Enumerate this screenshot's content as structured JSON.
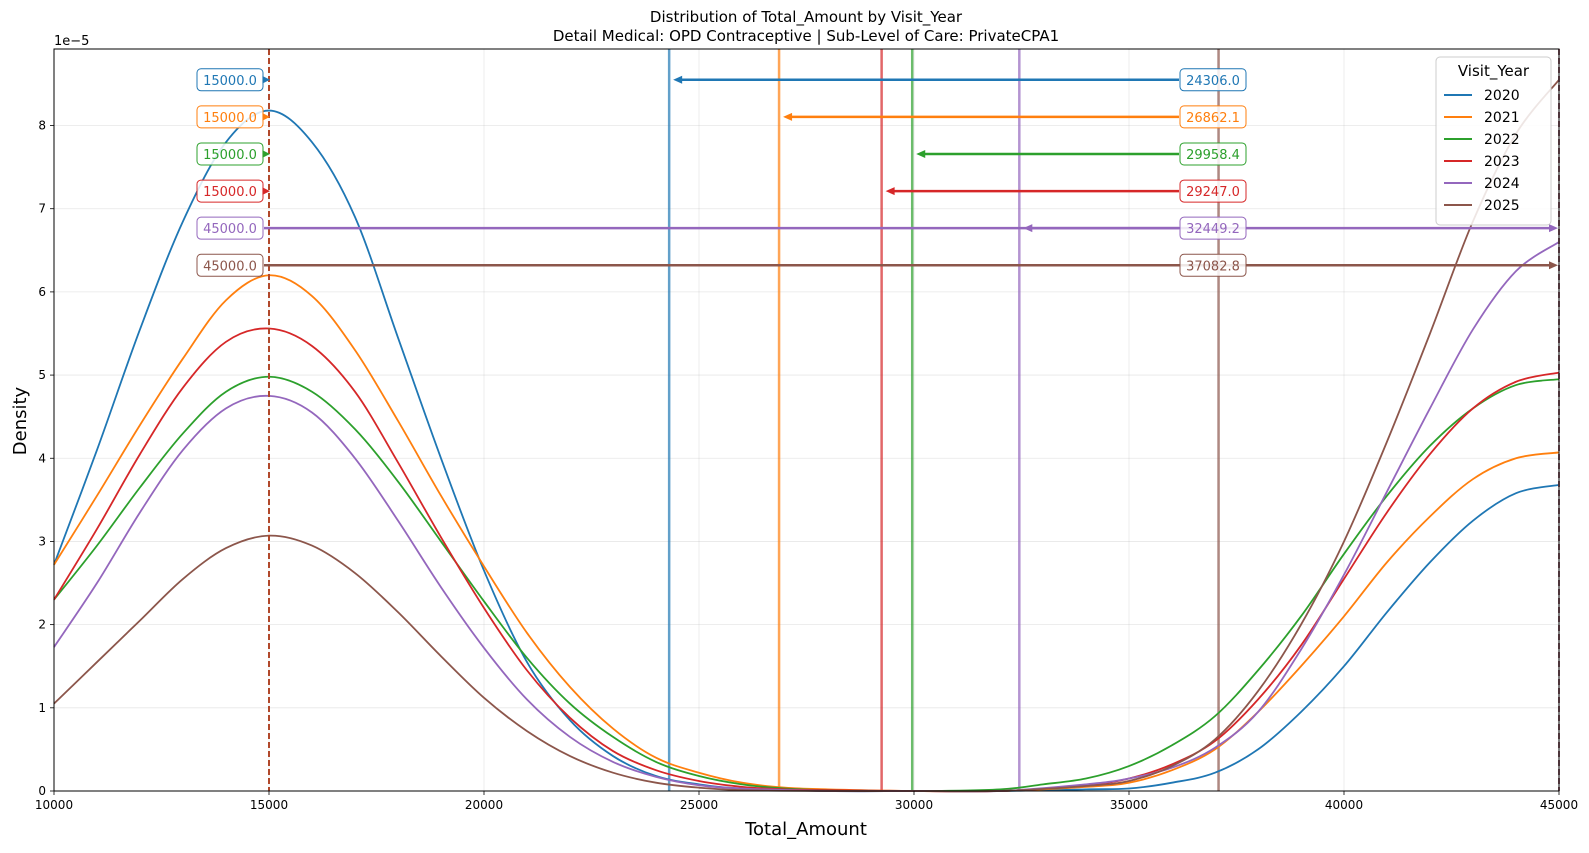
{
  "chart_data": {
    "type": "line",
    "title": "Distribution of Total_Amount by Visit_Year",
    "subtitle": "Detail Medical: OPD Contraceptive | Sub-Level of Care: PrivateCPA1",
    "xlabel": "Total_Amount",
    "ylabel": "Density",
    "y_scale_label": "1e−5",
    "xlim": [
      10000,
      45000
    ],
    "ylim": [
      0,
      8.92
    ],
    "x_ticks": [
      10000,
      15000,
      20000,
      25000,
      30000,
      35000,
      40000,
      45000
    ],
    "y_ticks": [
      0,
      1,
      2,
      3,
      4,
      5,
      6,
      7,
      8
    ],
    "grid": true,
    "legend": {
      "title": "Visit_Year",
      "placement": "top-right"
    },
    "series": [
      {
        "name": "2020",
        "color": "#1f77b4",
        "mode": 15000.0,
        "mean": 24306.0,
        "mode_label": "15000.0",
        "mean_label": "24306.0",
        "points": [
          [
            10000,
            2.72
          ],
          [
            11000,
            4.1
          ],
          [
            12000,
            5.55
          ],
          [
            13000,
            6.85
          ],
          [
            14000,
            7.8
          ],
          [
            15000,
            8.18
          ],
          [
            16000,
            7.8
          ],
          [
            17000,
            6.9
          ],
          [
            18000,
            5.45
          ],
          [
            19000,
            4.0
          ],
          [
            20000,
            2.65
          ],
          [
            21000,
            1.55
          ],
          [
            22000,
            0.85
          ],
          [
            23000,
            0.42
          ],
          [
            24000,
            0.18
          ],
          [
            25000,
            0.08
          ],
          [
            26000,
            0.03
          ],
          [
            28000,
            0.0
          ],
          [
            30000,
            0.0
          ],
          [
            32000,
            0.0
          ],
          [
            34000,
            0.02
          ],
          [
            35000,
            0.03
          ],
          [
            36000,
            0.1
          ],
          [
            37000,
            0.22
          ],
          [
            38000,
            0.5
          ],
          [
            39000,
            0.95
          ],
          [
            40000,
            1.5
          ],
          [
            41000,
            2.15
          ],
          [
            42000,
            2.75
          ],
          [
            43000,
            3.25
          ],
          [
            44000,
            3.58
          ],
          [
            45000,
            3.68
          ]
        ]
      },
      {
        "name": "2021",
        "color": "#ff7f0e",
        "mode": 15000.0,
        "mean": 26862.1,
        "mode_label": "15000.0",
        "mean_label": "26862.1",
        "points": [
          [
            10000,
            2.72
          ],
          [
            11000,
            3.55
          ],
          [
            12000,
            4.4
          ],
          [
            13000,
            5.2
          ],
          [
            14000,
            5.9
          ],
          [
            15000,
            6.2
          ],
          [
            16000,
            5.95
          ],
          [
            17000,
            5.3
          ],
          [
            18000,
            4.45
          ],
          [
            19000,
            3.55
          ],
          [
            20000,
            2.7
          ],
          [
            21000,
            1.9
          ],
          [
            22000,
            1.25
          ],
          [
            23000,
            0.75
          ],
          [
            24000,
            0.4
          ],
          [
            25000,
            0.22
          ],
          [
            26000,
            0.1
          ],
          [
            27000,
            0.04
          ],
          [
            28000,
            0.02
          ],
          [
            30000,
            0.0
          ],
          [
            32000,
            0.0
          ],
          [
            34000,
            0.05
          ],
          [
            35000,
            0.1
          ],
          [
            36000,
            0.25
          ],
          [
            37000,
            0.5
          ],
          [
            38000,
            0.95
          ],
          [
            39000,
            1.5
          ],
          [
            40000,
            2.1
          ],
          [
            41000,
            2.75
          ],
          [
            42000,
            3.3
          ],
          [
            43000,
            3.75
          ],
          [
            44000,
            4.0
          ],
          [
            45000,
            4.07
          ]
        ]
      },
      {
        "name": "2022",
        "color": "#2ca02c",
        "mode": 15000.0,
        "mean": 29958.4,
        "mode_label": "15000.0",
        "mean_label": "29958.4",
        "points": [
          [
            10000,
            2.3
          ],
          [
            11000,
            2.95
          ],
          [
            12000,
            3.65
          ],
          [
            13000,
            4.3
          ],
          [
            14000,
            4.8
          ],
          [
            15000,
            4.98
          ],
          [
            16000,
            4.8
          ],
          [
            17000,
            4.35
          ],
          [
            18000,
            3.72
          ],
          [
            19000,
            3.0
          ],
          [
            20000,
            2.28
          ],
          [
            21000,
            1.6
          ],
          [
            22000,
            1.05
          ],
          [
            23000,
            0.65
          ],
          [
            24000,
            0.35
          ],
          [
            25000,
            0.18
          ],
          [
            26000,
            0.08
          ],
          [
            27000,
            0.03
          ],
          [
            28000,
            0.01
          ],
          [
            30000,
            0.0
          ],
          [
            32000,
            0.02
          ],
          [
            33000,
            0.08
          ],
          [
            34000,
            0.15
          ],
          [
            35000,
            0.3
          ],
          [
            36000,
            0.55
          ],
          [
            37000,
            0.9
          ],
          [
            38000,
            1.45
          ],
          [
            39000,
            2.1
          ],
          [
            40000,
            2.85
          ],
          [
            41000,
            3.55
          ],
          [
            42000,
            4.15
          ],
          [
            43000,
            4.6
          ],
          [
            44000,
            4.88
          ],
          [
            45000,
            4.95
          ]
        ]
      },
      {
        "name": "2023",
        "color": "#d62728",
        "mode": 15000.0,
        "mean": 29247.0,
        "mode_label": "15000.0",
        "mean_label": "29247.0",
        "points": [
          [
            10000,
            2.3
          ],
          [
            11000,
            3.15
          ],
          [
            12000,
            4.05
          ],
          [
            13000,
            4.85
          ],
          [
            14000,
            5.4
          ],
          [
            15000,
            5.56
          ],
          [
            16000,
            5.35
          ],
          [
            17000,
            4.8
          ],
          [
            18000,
            3.95
          ],
          [
            19000,
            3.05
          ],
          [
            20000,
            2.2
          ],
          [
            21000,
            1.45
          ],
          [
            22000,
            0.88
          ],
          [
            23000,
            0.48
          ],
          [
            24000,
            0.25
          ],
          [
            25000,
            0.12
          ],
          [
            26000,
            0.05
          ],
          [
            27000,
            0.02
          ],
          [
            28000,
            0.01
          ],
          [
            30000,
            0.0
          ],
          [
            32000,
            0.0
          ],
          [
            34000,
            0.07
          ],
          [
            35000,
            0.15
          ],
          [
            36000,
            0.32
          ],
          [
            37000,
            0.6
          ],
          [
            38000,
            1.1
          ],
          [
            39000,
            1.75
          ],
          [
            40000,
            2.55
          ],
          [
            41000,
            3.35
          ],
          [
            42000,
            4.05
          ],
          [
            43000,
            4.6
          ],
          [
            44000,
            4.92
          ],
          [
            45000,
            5.03
          ]
        ]
      },
      {
        "name": "2024",
        "color": "#9467bd",
        "mode": 45000.0,
        "mean": 32449.2,
        "mode_label": "45000.0",
        "mean_label": "32449.2",
        "points": [
          [
            10000,
            1.73
          ],
          [
            11000,
            2.5
          ],
          [
            12000,
            3.35
          ],
          [
            13000,
            4.1
          ],
          [
            14000,
            4.6
          ],
          [
            15000,
            4.75
          ],
          [
            16000,
            4.55
          ],
          [
            17000,
            4.0
          ],
          [
            18000,
            3.25
          ],
          [
            19000,
            2.45
          ],
          [
            20000,
            1.72
          ],
          [
            21000,
            1.1
          ],
          [
            22000,
            0.65
          ],
          [
            23000,
            0.35
          ],
          [
            24000,
            0.17
          ],
          [
            25000,
            0.07
          ],
          [
            26000,
            0.03
          ],
          [
            28000,
            0.0
          ],
          [
            30000,
            0.0
          ],
          [
            32000,
            0.0
          ],
          [
            34000,
            0.08
          ],
          [
            35000,
            0.15
          ],
          [
            36000,
            0.28
          ],
          [
            37000,
            0.52
          ],
          [
            38000,
            0.95
          ],
          [
            39000,
            1.7
          ],
          [
            40000,
            2.6
          ],
          [
            41000,
            3.6
          ],
          [
            42000,
            4.6
          ],
          [
            43000,
            5.55
          ],
          [
            44000,
            6.25
          ],
          [
            45000,
            6.6
          ]
        ]
      },
      {
        "name": "2025",
        "color": "#8c564b",
        "mode": 45000.0,
        "mean": 37082.8,
        "mode_label": "45000.0",
        "mean_label": "37082.8",
        "points": [
          [
            10000,
            1.05
          ],
          [
            11000,
            1.55
          ],
          [
            12000,
            2.05
          ],
          [
            13000,
            2.55
          ],
          [
            14000,
            2.92
          ],
          [
            15000,
            3.07
          ],
          [
            16000,
            2.95
          ],
          [
            17000,
            2.62
          ],
          [
            18000,
            2.15
          ],
          [
            19000,
            1.62
          ],
          [
            20000,
            1.12
          ],
          [
            21000,
            0.72
          ],
          [
            22000,
            0.42
          ],
          [
            23000,
            0.22
          ],
          [
            24000,
            0.1
          ],
          [
            25000,
            0.04
          ],
          [
            26000,
            0.01
          ],
          [
            28000,
            0.0
          ],
          [
            30000,
            0.0
          ],
          [
            32000,
            0.0
          ],
          [
            34000,
            0.06
          ],
          [
            35000,
            0.12
          ],
          [
            36000,
            0.3
          ],
          [
            37000,
            0.62
          ],
          [
            38000,
            1.2
          ],
          [
            39000,
            2.0
          ],
          [
            40000,
            3.0
          ],
          [
            41000,
            4.2
          ],
          [
            42000,
            5.5
          ],
          [
            43000,
            6.85
          ],
          [
            44000,
            7.9
          ],
          [
            45000,
            8.55
          ]
        ]
      }
    ]
  }
}
